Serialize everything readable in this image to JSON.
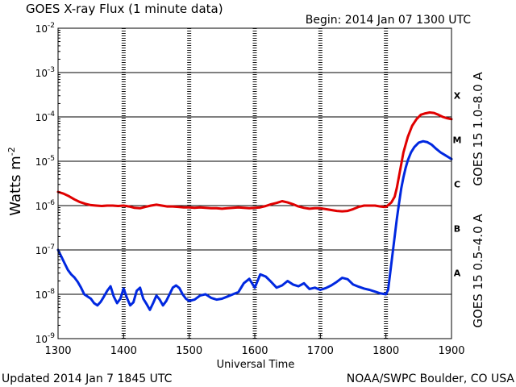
{
  "chart_data": {
    "type": "line",
    "title": "GOES X-ray Flux (1 minute data)",
    "begin_label": "Begin: 2014 Jan 07 1300 UTC",
    "xlabel": "Universal Time",
    "ylabel_main": "Watts m",
    "ylabel_sup": "-2",
    "updated_label": "Updated 2014 Jan  7 1845 UTC",
    "credit_label": "NOAA/SWPC Boulder, CO USA",
    "xlim": [
      0,
      360
    ],
    "xticks": [
      {
        "v": 0,
        "label": "1300"
      },
      {
        "v": 60,
        "label": "1400"
      },
      {
        "v": 120,
        "label": "1500"
      },
      {
        "v": 180,
        "label": "1600"
      },
      {
        "v": 240,
        "label": "1700"
      },
      {
        "v": 300,
        "label": "1800"
      },
      {
        "v": 360,
        "label": "1900"
      }
    ],
    "yscale": "log",
    "ylim_exp": [
      -9,
      -2
    ],
    "yticks": [
      {
        "exp": -2,
        "base": "10",
        "sup": "-2"
      },
      {
        "exp": -3,
        "base": "10",
        "sup": "-3"
      },
      {
        "exp": -4,
        "base": "10",
        "sup": "-4"
      },
      {
        "exp": -5,
        "base": "10",
        "sup": "-5"
      },
      {
        "exp": -6,
        "base": "10",
        "sup": "-6"
      },
      {
        "exp": -7,
        "base": "10",
        "sup": "-7"
      },
      {
        "exp": -8,
        "base": "10",
        "sup": "-8"
      },
      {
        "exp": -9,
        "base": "10",
        "sup": "-9"
      }
    ],
    "flare_classes": [
      {
        "label": "X",
        "exp": -4
      },
      {
        "label": "M",
        "exp": -5
      },
      {
        "label": "C",
        "exp": -6
      },
      {
        "label": "B",
        "exp": -7
      },
      {
        "label": "A",
        "exp": -8
      }
    ],
    "grid": "horizontal",
    "legend_position": "right",
    "series": [
      {
        "name": "GOES 15 1.0–8.0 A",
        "color": "#e00000",
        "x": [
          0,
          5,
          10,
          15,
          20,
          25,
          30,
          35,
          40,
          45,
          50,
          55,
          60,
          65,
          70,
          75,
          80,
          85,
          90,
          95,
          100,
          105,
          110,
          115,
          120,
          125,
          130,
          135,
          140,
          145,
          150,
          155,
          160,
          165,
          170,
          175,
          180,
          185,
          190,
          195,
          200,
          205,
          210,
          215,
          220,
          225,
          230,
          235,
          240,
          245,
          250,
          255,
          260,
          265,
          270,
          275,
          280,
          285,
          290,
          295,
          298,
          300,
          302,
          305,
          308,
          310,
          313,
          316,
          320,
          324,
          328,
          332,
          336,
          340,
          344,
          348,
          352,
          356,
          360
        ],
        "log10_values": [
          -5.69,
          -5.73,
          -5.79,
          -5.86,
          -5.92,
          -5.96,
          -5.99,
          -6.0,
          -6.01,
          -6.0,
          -6.0,
          -6.01,
          -6.0,
          -6.02,
          -6.05,
          -6.06,
          -6.03,
          -6.0,
          -5.98,
          -6.0,
          -6.02,
          -6.02,
          -6.03,
          -6.04,
          -6.04,
          -6.05,
          -6.04,
          -6.05,
          -6.06,
          -6.06,
          -6.07,
          -6.06,
          -6.05,
          -6.04,
          -6.05,
          -6.06,
          -6.05,
          -6.04,
          -6.01,
          -5.97,
          -5.94,
          -5.9,
          -5.93,
          -5.97,
          -6.02,
          -6.05,
          -6.07,
          -6.06,
          -6.06,
          -6.08,
          -6.1,
          -6.12,
          -6.13,
          -6.12,
          -6.08,
          -6.03,
          -6.0,
          -6.0,
          -6.0,
          -6.02,
          -6.03,
          -6.03,
          -5.99,
          -5.93,
          -5.8,
          -5.6,
          -5.2,
          -4.8,
          -4.45,
          -4.2,
          -4.05,
          -3.95,
          -3.92,
          -3.9,
          -3.91,
          -3.95,
          -4.0,
          -4.03,
          -4.05
        ]
      },
      {
        "name": "GOES 15 0.5–4.0 A",
        "color": "#0028e0",
        "x": [
          0,
          3,
          6,
          9,
          12,
          15,
          18,
          21,
          24,
          27,
          30,
          33,
          36,
          39,
          42,
          45,
          48,
          51,
          54,
          57,
          60,
          63,
          66,
          69,
          72,
          75,
          78,
          81,
          84,
          87,
          90,
          93,
          96,
          99,
          102,
          105,
          108,
          111,
          114,
          117,
          120,
          125,
          130,
          135,
          140,
          145,
          150,
          155,
          160,
          165,
          170,
          175,
          180,
          185,
          190,
          195,
          200,
          205,
          210,
          215,
          220,
          225,
          230,
          235,
          240,
          245,
          250,
          255,
          260,
          265,
          270,
          275,
          280,
          285,
          290,
          295,
          300,
          302,
          304,
          306,
          308,
          310,
          312,
          314,
          316,
          318,
          320,
          323,
          326,
          330,
          334,
          338,
          342,
          346,
          350,
          354,
          358,
          360
        ],
        "log10_values": [
          -7.0,
          -7.15,
          -7.3,
          -7.45,
          -7.55,
          -7.62,
          -7.72,
          -7.85,
          -8.0,
          -8.05,
          -8.1,
          -8.2,
          -8.25,
          -8.17,
          -8.05,
          -7.92,
          -7.82,
          -8.05,
          -8.2,
          -8.1,
          -7.87,
          -8.08,
          -8.25,
          -8.18,
          -7.92,
          -7.85,
          -8.1,
          -8.22,
          -8.35,
          -8.2,
          -8.03,
          -8.12,
          -8.25,
          -8.15,
          -8.0,
          -7.85,
          -7.8,
          -7.86,
          -8.0,
          -8.1,
          -8.15,
          -8.12,
          -8.03,
          -8.0,
          -8.08,
          -8.12,
          -8.1,
          -8.05,
          -8.0,
          -7.95,
          -7.75,
          -7.65,
          -7.85,
          -7.55,
          -7.6,
          -7.72,
          -7.85,
          -7.8,
          -7.7,
          -7.78,
          -7.82,
          -7.75,
          -7.88,
          -7.85,
          -7.9,
          -7.86,
          -7.8,
          -7.72,
          -7.63,
          -7.66,
          -7.78,
          -7.83,
          -7.87,
          -7.9,
          -7.94,
          -7.98,
          -8.0,
          -7.9,
          -7.5,
          -7.1,
          -6.7,
          -6.3,
          -5.95,
          -5.62,
          -5.36,
          -5.15,
          -4.98,
          -4.8,
          -4.68,
          -4.58,
          -4.55,
          -4.57,
          -4.63,
          -4.72,
          -4.8,
          -4.86,
          -4.92,
          -4.95
        ]
      }
    ]
  }
}
